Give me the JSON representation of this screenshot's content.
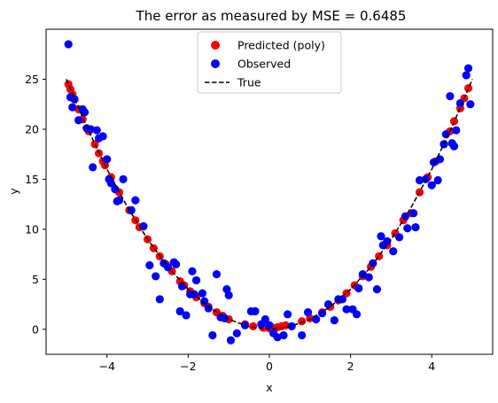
{
  "chart_data": {
    "type": "scatter",
    "title": "The error as measured by MSE = 0.6485",
    "xlabel": "x",
    "ylabel": "y",
    "xlim": [
      -5.5,
      5.5
    ],
    "ylim": [
      -2.5,
      30
    ],
    "xticks": [
      -4,
      -2,
      0,
      2,
      4
    ],
    "yticks": [
      0,
      5,
      10,
      15,
      20,
      25
    ],
    "xtick_labels": [
      "−4",
      "−2",
      "0",
      "2",
      "4"
    ],
    "ytick_labels": [
      "0",
      "5",
      "10",
      "15",
      "20",
      "25"
    ],
    "grid": false,
    "legend_position": "top-center",
    "series": [
      {
        "name": "Predicted (poly)",
        "kind": "scatter",
        "color": "#ff0000",
        "x": [
          -4.95,
          -4.9,
          -4.85,
          -4.8,
          -4.7,
          -4.6,
          -4.45,
          -4.3,
          -4.2,
          -4.1,
          -4.05,
          -3.9,
          -3.7,
          -3.45,
          -3.3,
          -3.2,
          -3.0,
          -2.85,
          -2.7,
          -2.55,
          -2.4,
          -2.2,
          -2.1,
          -1.95,
          -1.8,
          -1.6,
          -1.5,
          -1.3,
          -1.15,
          -1.0,
          -0.6,
          -0.4,
          -0.15,
          0.0,
          0.1,
          0.2,
          0.3,
          0.4,
          0.8,
          1.0,
          1.3,
          1.5,
          1.7,
          1.9,
          2.1,
          2.3,
          2.5,
          2.7,
          2.9,
          3.1,
          3.3,
          3.5,
          3.7,
          3.9,
          4.1,
          4.3,
          4.45,
          4.55,
          4.7,
          4.8,
          4.9
        ],
        "y": [
          24.5,
          24.0,
          23.5,
          23.0,
          22.0,
          21.0,
          19.8,
          18.5,
          17.6,
          16.8,
          16.4,
          15.2,
          13.7,
          11.9,
          10.9,
          10.2,
          9.0,
          8.1,
          7.3,
          6.5,
          5.8,
          4.8,
          4.4,
          3.8,
          3.2,
          2.6,
          2.25,
          1.7,
          1.35,
          1.0,
          0.5,
          0.3,
          0.15,
          0.1,
          0.12,
          0.2,
          0.3,
          0.4,
          0.8,
          1.1,
          1.7,
          2.25,
          2.9,
          3.6,
          4.4,
          5.3,
          6.25,
          7.3,
          8.4,
          9.6,
          10.9,
          11.6,
          13.7,
          15.2,
          16.8,
          18.5,
          19.8,
          20.8,
          22.1,
          23.1,
          24.1
        ]
      },
      {
        "name": "Observed",
        "kind": "scatter",
        "color": "#0000ff",
        "x": [
          -4.95,
          -4.9,
          -4.85,
          -4.8,
          -4.7,
          -4.6,
          -4.55,
          -4.5,
          -4.4,
          -4.35,
          -4.25,
          -4.2,
          -4.1,
          -4.0,
          -3.95,
          -3.9,
          -3.8,
          -3.75,
          -3.7,
          -3.6,
          -3.4,
          -3.3,
          -3.1,
          -2.95,
          -2.8,
          -2.7,
          -2.6,
          -2.5,
          -2.35,
          -2.3,
          -2.2,
          -2.15,
          -2.05,
          -1.95,
          -1.9,
          -1.85,
          -1.8,
          -1.65,
          -1.6,
          -1.5,
          -1.4,
          -1.3,
          -1.2,
          -1.1,
          -1.05,
          -1.0,
          -0.95,
          -0.8,
          -0.6,
          -0.45,
          -0.35,
          -0.2,
          -0.1,
          0.0,
          0.1,
          0.2,
          0.35,
          0.45,
          0.55,
          0.8,
          0.95,
          1.15,
          1.3,
          1.45,
          1.6,
          1.7,
          1.8,
          1.9,
          2.05,
          2.15,
          2.2,
          2.3,
          2.45,
          2.55,
          2.65,
          2.75,
          2.8,
          2.9,
          3.05,
          3.2,
          3.35,
          3.4,
          3.55,
          3.6,
          3.7,
          3.85,
          4.0,
          4.05,
          4.15,
          4.2,
          4.3,
          4.35,
          4.45,
          4.5,
          4.55,
          4.6,
          4.7,
          4.85,
          4.9,
          4.95
        ],
        "y": [
          28.5,
          23.2,
          22.2,
          23.0,
          20.9,
          22.0,
          21.7,
          20.1,
          20.0,
          16.2,
          19.9,
          19.1,
          19.3,
          17.0,
          15.0,
          14.6,
          14.0,
          12.8,
          12.9,
          15.0,
          11.9,
          12.9,
          10.3,
          6.4,
          5.3,
          3.0,
          6.6,
          6.2,
          6.7,
          6.5,
          1.8,
          4.3,
          1.4,
          3.5,
          5.8,
          3.5,
          4.9,
          3.6,
          2.8,
          2.1,
          -0.6,
          5.5,
          1.2,
          1.1,
          4.0,
          3.4,
          -1.1,
          -0.4,
          0.4,
          1.8,
          1.8,
          0.5,
          1.0,
          0.4,
          -0.4,
          -0.8,
          -0.6,
          1.5,
          0.3,
          -0.6,
          1.7,
          1.0,
          1.6,
          2.5,
          0.9,
          3.0,
          3.0,
          2.0,
          2.0,
          1.5,
          4.1,
          5.5,
          5.2,
          6.6,
          4.0,
          9.3,
          8.4,
          8.8,
          7.8,
          9.2,
          11.3,
          10.1,
          11.6,
          10.2,
          14.9,
          15.0,
          14.4,
          16.7,
          14.9,
          17.0,
          18.5,
          19.5,
          23.3,
          18.6,
          18.3,
          19.9,
          22.6,
          25.4,
          26.1,
          22.5
        ]
      },
      {
        "name": "True",
        "kind": "line",
        "style": "dashed",
        "color": "#000000",
        "x": [
          -5.0,
          -4.5,
          -4.0,
          -3.5,
          -3.0,
          -2.5,
          -2.0,
          -1.5,
          -1.0,
          -0.5,
          0.0,
          0.5,
          1.0,
          1.5,
          2.0,
          2.5,
          3.0,
          3.5,
          4.0,
          4.5,
          5.0
        ],
        "y": [
          25.0,
          20.25,
          16.0,
          12.25,
          9.0,
          6.25,
          4.0,
          2.25,
          1.0,
          0.25,
          0.0,
          0.25,
          1.0,
          2.25,
          4.0,
          6.25,
          9.0,
          12.25,
          16.0,
          20.25,
          25.0
        ]
      }
    ]
  }
}
